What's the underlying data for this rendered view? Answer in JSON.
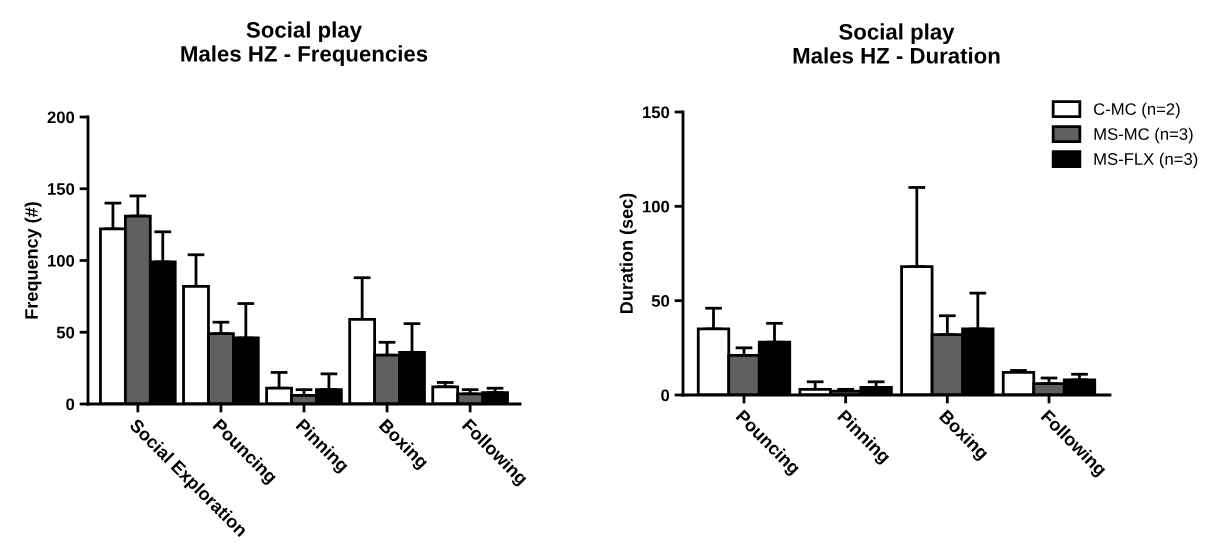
{
  "chart_data": [
    {
      "type": "bar",
      "title": "Social play\nMales HZ - Frequencies",
      "ylabel": "Frequency (#)",
      "categories": [
        "Social Exploration",
        "Pouncing",
        "Pinning",
        "Boxing",
        "Following"
      ],
      "series": [
        {
          "color": "#ffffff",
          "values": [
            122,
            82,
            11,
            59,
            12
          ],
          "errors": [
            [
              122,
              140
            ],
            [
              82,
              104
            ],
            [
              11,
              22
            ],
            [
              59,
              88
            ],
            [
              12,
              15
            ]
          ]
        },
        {
          "color": "#606060",
          "values": [
            131,
            49,
            6,
            34,
            7
          ],
          "errors": [
            [
              131,
              145
            ],
            [
              49,
              57
            ],
            [
              6,
              10
            ],
            [
              34,
              43
            ],
            [
              7,
              10
            ]
          ]
        },
        {
          "color": "#000000",
          "values": [
            99,
            46,
            10,
            36,
            8
          ],
          "errors": [
            [
              99,
              120
            ],
            [
              46,
              70
            ],
            [
              10,
              21
            ],
            [
              36,
              56
            ],
            [
              8,
              11
            ]
          ]
        }
      ],
      "ylim": [
        0,
        200
      ],
      "yticks": [
        0,
        50,
        100,
        150,
        200
      ],
      "grid": false,
      "legend": false
    },
    {
      "type": "bar",
      "title": "Social play\nMales HZ - Duration",
      "ylabel": "Duration (sec)",
      "categories": [
        "Pouncing",
        "Pinning",
        "Boxing",
        "Following"
      ],
      "series": [
        {
          "name": "C-MC (n=2)",
          "color": "#ffffff",
          "values": [
            35,
            3,
            68,
            12
          ],
          "errors": [
            [
              35,
              46
            ],
            [
              3,
              7
            ],
            [
              68,
              110
            ],
            [
              12,
              13
            ]
          ]
        },
        {
          "name": "MS-MC (n=3)",
          "color": "#606060",
          "values": [
            21,
            2,
            32,
            6
          ],
          "errors": [
            [
              21,
              25
            ],
            [
              2,
              3
            ],
            [
              32,
              42
            ],
            [
              6,
              9
            ]
          ]
        },
        {
          "name": "MS-FLX (n=3)",
          "color": "#000000",
          "values": [
            28,
            4,
            35,
            8
          ],
          "errors": [
            [
              28,
              38
            ],
            [
              4,
              7
            ],
            [
              35,
              54
            ],
            [
              8,
              11
            ]
          ]
        }
      ],
      "ylim": [
        0,
        150
      ],
      "yticks": [
        0,
        50,
        100,
        150
      ],
      "grid": false,
      "legend": "top right"
    }
  ]
}
